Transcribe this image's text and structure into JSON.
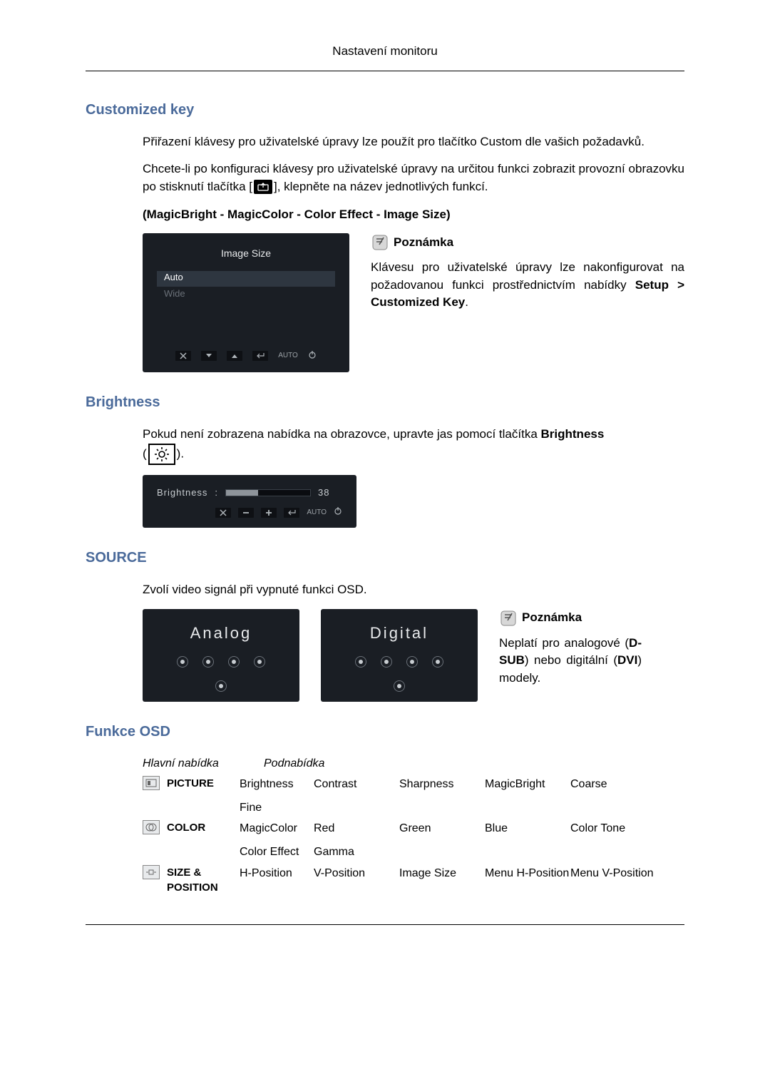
{
  "page_header": "Nastavení monitoru",
  "sections": {
    "customized_key": {
      "title": "Customized key",
      "p1": "Přiřazení klávesy pro uživatelské úpravy lze použít pro tlačítko Custom dle vašich požadavků.",
      "p2a": "Chcete-li po konfiguraci klávesy pro uživatelské úpravy na určitou funkci zobrazit provozní obrazovku po stisknutí tlačítka [",
      "p2b": "], klepněte na název jednotlivých funkcí.",
      "options_line": "(MagicBright - MagicColor - Color Effect - Image Size)",
      "osd": {
        "title": "Image Size",
        "items": [
          "Auto",
          "Wide"
        ],
        "selected_index": 0,
        "bg": "#1a1e24",
        "text": "#e8eaec",
        "auto_label": "AUTO"
      },
      "note": {
        "label": "Poznámka",
        "text_a": "Klávesu pro uživatelské úpravy lze nakonfigurovat na požadovanou funkci prostřednictvím nabídky ",
        "bold": "Setup > Customized Key",
        "text_b": "."
      }
    },
    "brightness": {
      "title": "Brightness",
      "p1a": "Pokud není zobrazena nabídka na obrazovce, upravte jas pomocí tlačítka ",
      "p1bold": "Brightness",
      "p1b": " (",
      "p1c": ").",
      "osd": {
        "label": "Brightness",
        "value": 38,
        "max": 100,
        "auto_label": "AUTO"
      }
    },
    "source": {
      "title": "SOURCE",
      "p1": "Zvolí video signál při vypnuté funkci OSD.",
      "analog": "Analog",
      "digital": "Digital",
      "note": {
        "label": "Poznámka",
        "text_a": "Neplatí pro analogové (",
        "bold1": "D-SUB",
        "text_b": ") nebo digitální (",
        "bold2": "DVI",
        "text_c": ") modely."
      }
    },
    "osd_funcs": {
      "title": "Funkce OSD",
      "th_main": "Hlavní nabídka",
      "th_sub": "Podnabídka",
      "rows": [
        {
          "main": "PICTURE",
          "subs": [
            [
              "Brightness",
              "Contrast",
              "Sharpness",
              "MagicBright",
              "Coarse"
            ],
            [
              "Fine",
              "",
              "",
              "",
              ""
            ]
          ]
        },
        {
          "main": "COLOR",
          "subs": [
            [
              "MagicColor",
              "Red",
              "Green",
              "Blue",
              "Color Tone"
            ],
            [
              "Color Effect",
              "Gamma",
              "",
              "",
              ""
            ]
          ]
        },
        {
          "main": "SIZE & POSITION",
          "subs": [
            [
              "H-Position",
              "V-Position",
              "Image Size",
              "Menu H-Position",
              "Menu V-Position"
            ]
          ]
        }
      ]
    }
  },
  "colors": {
    "heading": "#4a6a9a",
    "osd_bg": "#1a1e24",
    "osd_text": "#e8eaec"
  }
}
